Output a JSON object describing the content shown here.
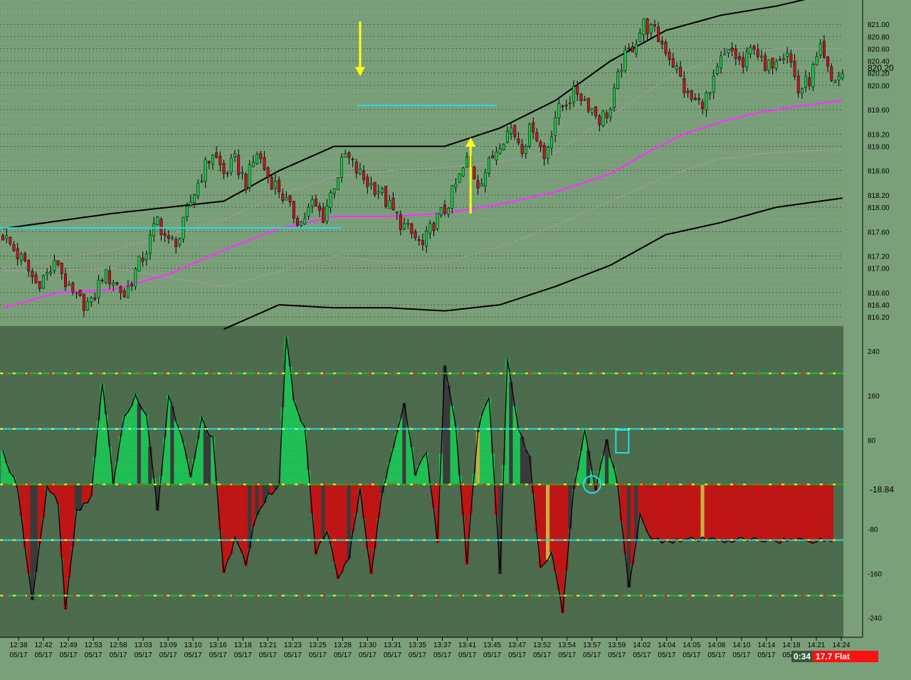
{
  "colors": {
    "background": "#7aa07a",
    "lower_panel": "#4d6b4d",
    "candle_up": "#1fc34a",
    "candle_down": "#c2161c",
    "band": "#000000",
    "midband": "#9a9a9a",
    "ma": "#ff30ff",
    "support": "#20e0e0",
    "arrow": "#ffff10",
    "hist_up": "#1fbf55",
    "hist_down": "#c01515",
    "hist_neutral": "#3a3a3a",
    "hist_flag": "#c8b040"
  },
  "status": {
    "timer": "0:34",
    "position": "17.7 Flat"
  },
  "chart_data": [
    {
      "type": "candlestick",
      "panel": "price",
      "last_price": "820.20",
      "y_ticks": [
        "821.00",
        "820.80",
        "820.60",
        "820.40",
        "820.20",
        "820.00",
        "819.60",
        "819.20",
        "819.00",
        "818.60",
        "818.20",
        "818.00",
        "817.60",
        "817.20",
        "817.00",
        "816.60",
        "816.40",
        "816.20"
      ],
      "ylim": [
        816.05,
        821.4
      ],
      "x_tick_times": [
        "12:38",
        "12:42",
        "12:49",
        "12:53",
        "12:58",
        "13:03",
        "13:09",
        "13:10",
        "13:16",
        "13:18",
        "13:21",
        "13:23",
        "13:25",
        "13:28",
        "13:30",
        "13:31",
        "13:35",
        "13:37",
        "13:41",
        "13:45",
        "13:47",
        "13:52",
        "13:54",
        "13:57",
        "13:59",
        "14:02",
        "14:04",
        "14:05",
        "14:08",
        "14:10",
        "14:14",
        "14:18",
        "14:21",
        "14:24"
      ],
      "x_tick_dates": [
        "05/17",
        "05/17",
        "05/17",
        "05/17",
        "05/17",
        "05/17",
        "05/17",
        "05/17",
        "05/17",
        "05/17",
        "05/17",
        "05/17",
        "05/17",
        "05/17",
        "05/17",
        "05/17",
        "05/17",
        "05/17",
        "05/17",
        "05/17",
        "05/17",
        "05/17",
        "05/17",
        "05/17",
        "05/17",
        "05/17",
        "05/17",
        "05/17",
        "05/17",
        "05/17",
        "05/17",
        "05/17",
        "05/17",
        "05/17"
      ],
      "candle_anchors": [
        [
          0,
          817.55
        ],
        [
          3,
          817.3
        ],
        [
          6,
          817.05
        ],
        [
          9,
          816.75
        ],
        [
          12,
          816.9
        ],
        [
          15,
          817.1
        ],
        [
          18,
          816.6
        ],
        [
          21,
          816.45
        ],
        [
          24,
          816.4
        ],
        [
          27,
          816.9
        ],
        [
          30,
          816.8
        ],
        [
          33,
          816.55
        ],
        [
          36,
          816.95
        ],
        [
          39,
          817.3
        ],
        [
          42,
          817.8
        ],
        [
          45,
          817.4
        ],
        [
          48,
          817.5
        ],
        [
          51,
          818.1
        ],
        [
          54,
          818.55
        ],
        [
          57,
          818.9
        ],
        [
          60,
          818.55
        ],
        [
          63,
          818.75
        ],
        [
          66,
          818.4
        ],
        [
          69,
          818.9
        ],
        [
          72,
          818.5
        ],
        [
          75,
          818.3
        ],
        [
          78,
          817.95
        ],
        [
          81,
          817.75
        ],
        [
          84,
          818.05
        ],
        [
          87,
          817.85
        ],
        [
          90,
          818.4
        ],
        [
          93,
          818.85
        ],
        [
          96,
          818.6
        ],
        [
          99,
          818.4
        ],
        [
          102,
          818.3
        ],
        [
          105,
          818.0
        ],
        [
          108,
          817.75
        ],
        [
          111,
          817.55
        ],
        [
          114,
          817.35
        ],
        [
          117,
          817.75
        ],
        [
          120,
          817.95
        ],
        [
          123,
          818.35
        ],
        [
          126,
          818.75
        ],
        [
          129,
          818.4
        ],
        [
          132,
          818.7
        ],
        [
          135,
          819.1
        ],
        [
          138,
          819.3
        ],
        [
          141,
          819.0
        ],
        [
          144,
          819.35
        ],
        [
          147,
          818.8
        ],
        [
          150,
          819.5
        ],
        [
          153,
          819.75
        ],
        [
          156,
          819.9
        ],
        [
          159,
          819.7
        ],
        [
          162,
          819.45
        ],
        [
          165,
          819.6
        ],
        [
          168,
          820.35
        ],
        [
          171,
          820.65
        ],
        [
          174,
          821.0
        ],
        [
          177,
          820.85
        ],
        [
          180,
          820.6
        ],
        [
          183,
          820.25
        ],
        [
          186,
          819.8
        ],
        [
          189,
          819.7
        ],
        [
          192,
          819.85
        ],
        [
          195,
          820.4
        ],
        [
          198,
          820.55
        ],
        [
          201,
          820.3
        ],
        [
          204,
          820.7
        ],
        [
          207,
          820.2
        ],
        [
          210,
          820.5
        ],
        [
          213,
          820.6
        ],
        [
          216,
          819.9
        ],
        [
          219,
          820.1
        ],
        [
          222,
          820.55
        ],
        [
          225,
          820.05
        ],
        [
          228,
          820.2
        ]
      ],
      "overlays": {
        "upper_band": [
          [
            0,
            817.65
          ],
          [
            30,
            817.9
          ],
          [
            60,
            818.1
          ],
          [
            75,
            818.6
          ],
          [
            90,
            819.0
          ],
          [
            105,
            819.0
          ],
          [
            120,
            819.0
          ],
          [
            135,
            819.3
          ],
          [
            150,
            819.75
          ],
          [
            165,
            820.4
          ],
          [
            180,
            820.9
          ],
          [
            195,
            821.15
          ],
          [
            210,
            821.3
          ],
          [
            228,
            821.55
          ]
        ],
        "mid_upper": [
          [
            0,
            817.0
          ],
          [
            30,
            817.3
          ],
          [
            60,
            817.8
          ],
          [
            75,
            818.2
          ],
          [
            90,
            818.5
          ],
          [
            105,
            818.6
          ],
          [
            120,
            818.65
          ],
          [
            135,
            818.75
          ],
          [
            150,
            818.9
          ],
          [
            165,
            819.5
          ],
          [
            180,
            820.1
          ],
          [
            195,
            820.5
          ],
          [
            210,
            820.6
          ],
          [
            228,
            820.6
          ]
        ],
        "moving_average": [
          [
            0,
            816.35
          ],
          [
            15,
            816.6
          ],
          [
            30,
            816.65
          ],
          [
            45,
            816.9
          ],
          [
            60,
            817.3
          ],
          [
            75,
            817.65
          ],
          [
            90,
            817.85
          ],
          [
            105,
            817.85
          ],
          [
            120,
            817.9
          ],
          [
            135,
            818.05
          ],
          [
            150,
            818.25
          ],
          [
            165,
            818.55
          ],
          [
            175,
            818.9
          ],
          [
            185,
            819.2
          ],
          [
            195,
            819.4
          ],
          [
            205,
            819.55
          ],
          [
            215,
            819.65
          ],
          [
            228,
            819.75
          ]
        ],
        "mid_lower": [
          [
            0,
            816.95
          ],
          [
            30,
            817.0
          ],
          [
            60,
            816.7
          ],
          [
            75,
            816.95
          ],
          [
            90,
            817.2
          ],
          [
            105,
            817.1
          ],
          [
            120,
            817.1
          ],
          [
            135,
            817.35
          ],
          [
            150,
            817.7
          ],
          [
            165,
            818.1
          ],
          [
            180,
            818.5
          ],
          [
            195,
            818.8
          ],
          [
            210,
            818.9
          ],
          [
            228,
            818.95
          ]
        ],
        "lower_band": [
          [
            60,
            816.0
          ],
          [
            75,
            816.4
          ],
          [
            90,
            816.35
          ],
          [
            105,
            816.35
          ],
          [
            120,
            816.3
          ],
          [
            135,
            816.4
          ],
          [
            150,
            816.7
          ],
          [
            165,
            817.05
          ],
          [
            180,
            817.55
          ],
          [
            195,
            817.75
          ],
          [
            210,
            818.0
          ],
          [
            228,
            818.15
          ]
        ],
        "support_lines": [
          [
            0,
            92,
            817.66
          ],
          [
            97,
            134,
            819.67
          ]
        ],
        "arrows": [
          [
            97,
            "down"
          ],
          [
            127,
            "up"
          ]
        ]
      }
    },
    {
      "type": "histogram",
      "panel": "oscillator",
      "last_value": "-18.84",
      "y_ticks": [
        "240",
        "160",
        "80",
        "0",
        "-80",
        "-160",
        "-240"
      ],
      "ylim": [
        -275,
        285
      ],
      "levels": [
        200,
        100,
        0,
        -100,
        -200
      ],
      "anchors": [
        [
          0,
          60
        ],
        [
          4,
          -10
        ],
        [
          8,
          -210
        ],
        [
          12,
          -5
        ],
        [
          15,
          -30
        ],
        [
          17,
          -230
        ],
        [
          20,
          -50
        ],
        [
          24,
          -20
        ],
        [
          27,
          180
        ],
        [
          30,
          5
        ],
        [
          33,
          120
        ],
        [
          36,
          160
        ],
        [
          39,
          120
        ],
        [
          42,
          -50
        ],
        [
          45,
          160
        ],
        [
          48,
          100
        ],
        [
          51,
          15
        ],
        [
          54,
          120
        ],
        [
          57,
          80
        ],
        [
          60,
          -160
        ],
        [
          63,
          -100
        ],
        [
          66,
          -140
        ],
        [
          69,
          -50
        ],
        [
          72,
          -20
        ],
        [
          75,
          0
        ],
        [
          77,
          270
        ],
        [
          79,
          150
        ],
        [
          82,
          100
        ],
        [
          85,
          -120
        ],
        [
          88,
          -80
        ],
        [
          91,
          -170
        ],
        [
          94,
          -130
        ],
        [
          97,
          -10
        ],
        [
          100,
          -160
        ],
        [
          103,
          -10
        ],
        [
          106,
          60
        ],
        [
          109,
          150
        ],
        [
          112,
          20
        ],
        [
          115,
          60
        ],
        [
          118,
          -100
        ],
        [
          120,
          210
        ],
        [
          123,
          100
        ],
        [
          126,
          -140
        ],
        [
          129,
          100
        ],
        [
          132,
          160
        ],
        [
          135,
          -160
        ],
        [
          137,
          230
        ],
        [
          140,
          100
        ],
        [
          143,
          50
        ],
        [
          146,
          -150
        ],
        [
          149,
          -120
        ],
        [
          152,
          -230
        ],
        [
          155,
          -10
        ],
        [
          158,
          100
        ],
        [
          161,
          -10
        ],
        [
          164,
          80
        ],
        [
          167,
          -5
        ],
        [
          170,
          -190
        ],
        [
          173,
          -50
        ],
        [
          176,
          -100
        ]
      ],
      "annotations": {
        "circle": [
          160,
          0
        ],
        "box": [
          168,
          80
        ]
      }
    }
  ]
}
